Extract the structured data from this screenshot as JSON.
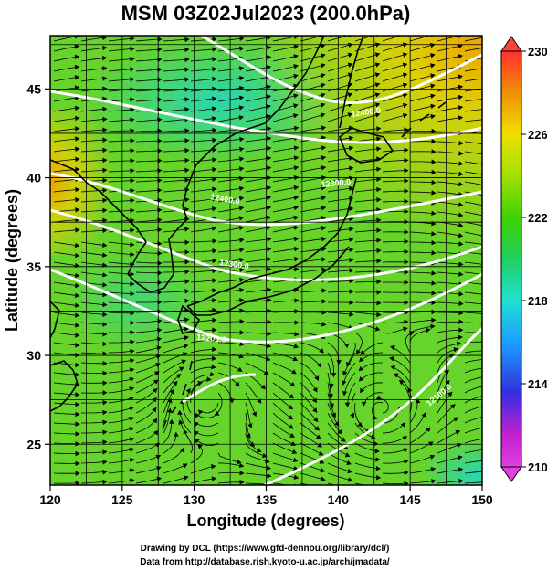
{
  "title": "MSM 03Z02Jul2023 (200.0hPa)",
  "x_axis": {
    "label": "Longitude (degrees)",
    "ticks": [
      120,
      125,
      130,
      135,
      140,
      145,
      150
    ]
  },
  "y_axis": {
    "label": "Latitude  (degrees)",
    "ticks": [
      25,
      30,
      35,
      40,
      45
    ]
  },
  "colorbar": {
    "ticks": [
      "210",
      "214",
      "218",
      "222",
      "226",
      "230"
    ],
    "colors": [
      "#e040e0",
      "#c020d0",
      "#3030e0",
      "#1aa0ff",
      "#20e0d0",
      "#20d060",
      "#40d000",
      "#a0e000",
      "#f0e000",
      "#f0a000",
      "#f06000",
      "#ff3030"
    ]
  },
  "contour_labels": [
    "12400.0",
    "12400.0",
    "12300.0",
    "12300.0",
    "12200.0",
    "12100.0"
  ],
  "footer": {
    "line1": "Drawing by DCL (https://www.gfd-dennou.org/library/dcl/)",
    "line2": "Data from http://database.rish.kyoto-u.ac.jp/arch/jmadata/"
  },
  "map_layers": [
    "temperature-shading",
    "wind-streamlines",
    "height-contours",
    "coastlines",
    "lat-lon-grid"
  ]
}
